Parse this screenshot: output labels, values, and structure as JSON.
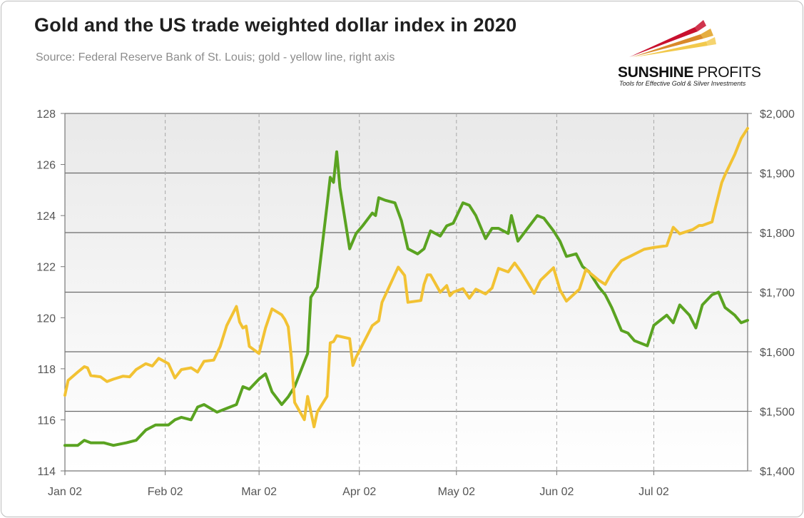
{
  "header": {
    "title": "Gold and the US trade weighted dollar index in 2020",
    "subtitle": "Source: Federal Reserve Bank of St. Louis; gold - yellow line, right axis"
  },
  "logo": {
    "brand_bold": "SUNSHINE",
    "brand_light": "PROFITS",
    "tagline": "Tools for Effective Gold & Silver Investments",
    "colors": [
      "#c8102e",
      "#e0a020",
      "#f2c94c"
    ]
  },
  "chart_data": {
    "type": "line",
    "title": "Gold and the US trade weighted dollar index in 2020",
    "x_start": "2020-01-02",
    "x_end": "2020-07-31",
    "x_tick_labels": [
      "Jan 02",
      "Feb 02",
      "Mar 02",
      "Apr 02",
      "May 02",
      "Jun 02",
      "Jul 02"
    ],
    "x_tick_dates": [
      "2020-01-02",
      "2020-02-02",
      "2020-03-02",
      "2020-04-02",
      "2020-05-02",
      "2020-06-02",
      "2020-07-02"
    ],
    "y_left": {
      "min": 114,
      "max": 128,
      "ticks": [
        114,
        116,
        118,
        120,
        122,
        124,
        126,
        128
      ]
    },
    "y_right": {
      "min": 1400,
      "max": 2000,
      "ticks": [
        1400,
        1500,
        1600,
        1700,
        1800,
        1900,
        2000
      ],
      "tick_labels": [
        "$1,400",
        "$1,500",
        "$1,600",
        "$1,700",
        "$1,800",
        "$1,900",
        "$2,000"
      ]
    },
    "grid": {
      "vertical_dashed": true,
      "horizontal_right_axis": true
    },
    "series": [
      {
        "axis": "left",
        "color": "#5aa321",
        "points": [
          [
            "2020-01-02",
            115.0
          ],
          [
            "2020-01-06",
            115.0
          ],
          [
            "2020-01-08",
            115.2
          ],
          [
            "2020-01-10",
            115.1
          ],
          [
            "2020-01-14",
            115.1
          ],
          [
            "2020-01-17",
            115.0
          ],
          [
            "2020-01-21",
            115.1
          ],
          [
            "2020-01-24",
            115.2
          ],
          [
            "2020-01-27",
            115.6
          ],
          [
            "2020-01-30",
            115.8
          ],
          [
            "2020-02-03",
            115.8
          ],
          [
            "2020-02-05",
            116.0
          ],
          [
            "2020-02-07",
            116.1
          ],
          [
            "2020-02-10",
            116.0
          ],
          [
            "2020-02-12",
            116.5
          ],
          [
            "2020-02-14",
            116.6
          ],
          [
            "2020-02-18",
            116.3
          ],
          [
            "2020-02-20",
            116.4
          ],
          [
            "2020-02-24",
            116.6
          ],
          [
            "2020-02-26",
            117.3
          ],
          [
            "2020-02-28",
            117.2
          ],
          [
            "2020-03-02",
            117.6
          ],
          [
            "2020-03-04",
            117.8
          ],
          [
            "2020-03-06",
            117.1
          ],
          [
            "2020-03-09",
            116.6
          ],
          [
            "2020-03-11",
            116.9
          ],
          [
            "2020-03-13",
            117.3
          ],
          [
            "2020-03-17",
            118.6
          ],
          [
            "2020-03-18",
            120.8
          ],
          [
            "2020-03-20",
            121.2
          ],
          [
            "2020-03-23",
            124.4
          ],
          [
            "2020-03-24",
            125.5
          ],
          [
            "2020-03-25",
            125.3
          ],
          [
            "2020-03-26",
            126.5
          ],
          [
            "2020-03-27",
            125.1
          ],
          [
            "2020-03-30",
            122.7
          ],
          [
            "2020-04-01",
            123.3
          ],
          [
            "2020-04-03",
            123.6
          ],
          [
            "2020-04-06",
            124.1
          ],
          [
            "2020-04-07",
            124.0
          ],
          [
            "2020-04-08",
            124.7
          ],
          [
            "2020-04-10",
            124.6
          ],
          [
            "2020-04-13",
            124.5
          ],
          [
            "2020-04-15",
            123.8
          ],
          [
            "2020-04-17",
            122.7
          ],
          [
            "2020-04-20",
            122.5
          ],
          [
            "2020-04-22",
            122.7
          ],
          [
            "2020-04-24",
            123.4
          ],
          [
            "2020-04-27",
            123.2
          ],
          [
            "2020-04-29",
            123.6
          ],
          [
            "2020-05-01",
            123.7
          ],
          [
            "2020-05-04",
            124.5
          ],
          [
            "2020-05-06",
            124.4
          ],
          [
            "2020-05-08",
            124.0
          ],
          [
            "2020-05-11",
            123.1
          ],
          [
            "2020-05-13",
            123.5
          ],
          [
            "2020-05-15",
            123.5
          ],
          [
            "2020-05-18",
            123.3
          ],
          [
            "2020-05-19",
            124.0
          ],
          [
            "2020-05-21",
            123.0
          ],
          [
            "2020-05-24",
            123.5
          ],
          [
            "2020-05-27",
            124.0
          ],
          [
            "2020-05-29",
            123.9
          ],
          [
            "2020-06-01",
            123.4
          ],
          [
            "2020-06-03",
            123.0
          ],
          [
            "2020-06-05",
            122.4
          ],
          [
            "2020-06-08",
            122.5
          ],
          [
            "2020-06-10",
            122.0
          ],
          [
            "2020-06-12",
            121.8
          ],
          [
            "2020-06-15",
            121.2
          ],
          [
            "2020-06-17",
            120.9
          ],
          [
            "2020-06-19",
            120.4
          ],
          [
            "2020-06-22",
            119.5
          ],
          [
            "2020-06-24",
            119.4
          ],
          [
            "2020-06-26",
            119.1
          ],
          [
            "2020-06-30",
            118.9
          ],
          [
            "2020-07-02",
            119.7
          ],
          [
            "2020-07-06",
            120.1
          ],
          [
            "2020-07-08",
            119.8
          ],
          [
            "2020-07-10",
            120.5
          ],
          [
            "2020-07-13",
            120.1
          ],
          [
            "2020-07-15",
            119.6
          ],
          [
            "2020-07-17",
            120.5
          ],
          [
            "2020-07-20",
            120.9
          ],
          [
            "2020-07-22",
            121.0
          ],
          [
            "2020-07-24",
            120.4
          ],
          [
            "2020-07-27",
            120.1
          ],
          [
            "2020-07-29",
            119.8
          ],
          [
            "2020-07-31",
            119.9
          ]
        ]
      },
      {
        "axis": "right",
        "color": "#f2c233",
        "points": [
          [
            "2020-01-02",
            1527
          ],
          [
            "2020-01-03",
            1552
          ],
          [
            "2020-01-06",
            1566
          ],
          [
            "2020-01-08",
            1575
          ],
          [
            "2020-01-09",
            1573
          ],
          [
            "2020-01-10",
            1560
          ],
          [
            "2020-01-13",
            1558
          ],
          [
            "2020-01-15",
            1550
          ],
          [
            "2020-01-17",
            1554
          ],
          [
            "2020-01-20",
            1559
          ],
          [
            "2020-01-22",
            1558
          ],
          [
            "2020-01-24",
            1570
          ],
          [
            "2020-01-27",
            1580
          ],
          [
            "2020-01-29",
            1576
          ],
          [
            "2020-01-31",
            1589
          ],
          [
            "2020-02-03",
            1580
          ],
          [
            "2020-02-05",
            1556
          ],
          [
            "2020-02-07",
            1570
          ],
          [
            "2020-02-10",
            1573
          ],
          [
            "2020-02-12",
            1566
          ],
          [
            "2020-02-14",
            1584
          ],
          [
            "2020-02-17",
            1586
          ],
          [
            "2020-02-19",
            1609
          ],
          [
            "2020-02-21",
            1644
          ],
          [
            "2020-02-24",
            1676
          ],
          [
            "2020-02-25",
            1650
          ],
          [
            "2020-02-26",
            1640
          ],
          [
            "2020-02-27",
            1643
          ],
          [
            "2020-02-28",
            1609
          ],
          [
            "2020-03-02",
            1597
          ],
          [
            "2020-03-04",
            1640
          ],
          [
            "2020-03-06",
            1672
          ],
          [
            "2020-03-09",
            1662
          ],
          [
            "2020-03-10",
            1654
          ],
          [
            "2020-03-11",
            1642
          ],
          [
            "2020-03-12",
            1590
          ],
          [
            "2020-03-13",
            1515
          ],
          [
            "2020-03-16",
            1486
          ],
          [
            "2020-03-17",
            1525
          ],
          [
            "2020-03-19",
            1474
          ],
          [
            "2020-03-20",
            1499
          ],
          [
            "2020-03-23",
            1525
          ],
          [
            "2020-03-24",
            1615
          ],
          [
            "2020-03-25",
            1617
          ],
          [
            "2020-03-26",
            1627
          ],
          [
            "2020-03-30",
            1622
          ],
          [
            "2020-03-31",
            1577
          ],
          [
            "2020-04-01",
            1591
          ],
          [
            "2020-04-06",
            1644
          ],
          [
            "2020-04-08",
            1652
          ],
          [
            "2020-04-09",
            1683
          ],
          [
            "2020-04-14",
            1742
          ],
          [
            "2020-04-16",
            1728
          ],
          [
            "2020-04-17",
            1683
          ],
          [
            "2020-04-21",
            1686
          ],
          [
            "2020-04-22",
            1713
          ],
          [
            "2020-04-23",
            1729
          ],
          [
            "2020-04-24",
            1729
          ],
          [
            "2020-04-27",
            1700
          ],
          [
            "2020-04-29",
            1711
          ],
          [
            "2020-04-30",
            1694
          ],
          [
            "2020-05-01",
            1700
          ],
          [
            "2020-05-04",
            1706
          ],
          [
            "2020-05-06",
            1690
          ],
          [
            "2020-05-08",
            1705
          ],
          [
            "2020-05-11",
            1697
          ],
          [
            "2020-05-13",
            1707
          ],
          [
            "2020-05-15",
            1740
          ],
          [
            "2020-05-18",
            1734
          ],
          [
            "2020-05-20",
            1749
          ],
          [
            "2020-05-22",
            1734
          ],
          [
            "2020-05-26",
            1698
          ],
          [
            "2020-05-28",
            1720
          ],
          [
            "2020-06-01",
            1741
          ],
          [
            "2020-06-03",
            1704
          ],
          [
            "2020-06-05",
            1685
          ],
          [
            "2020-06-09",
            1705
          ],
          [
            "2020-06-11",
            1738
          ],
          [
            "2020-06-15",
            1720
          ],
          [
            "2020-06-17",
            1713
          ],
          [
            "2020-06-19",
            1733
          ],
          [
            "2020-06-22",
            1753
          ],
          [
            "2020-06-25",
            1761
          ],
          [
            "2020-06-29",
            1772
          ],
          [
            "2020-07-02",
            1775
          ],
          [
            "2020-07-06",
            1778
          ],
          [
            "2020-07-08",
            1809
          ],
          [
            "2020-07-10",
            1798
          ],
          [
            "2020-07-14",
            1805
          ],
          [
            "2020-07-16",
            1812
          ],
          [
            "2020-07-17",
            1812
          ],
          [
            "2020-07-20",
            1818
          ],
          [
            "2020-07-21",
            1841
          ],
          [
            "2020-07-23",
            1884
          ],
          [
            "2020-07-24",
            1897
          ],
          [
            "2020-07-27",
            1931
          ],
          [
            "2020-07-29",
            1958
          ],
          [
            "2020-07-31",
            1975
          ]
        ]
      }
    ]
  }
}
